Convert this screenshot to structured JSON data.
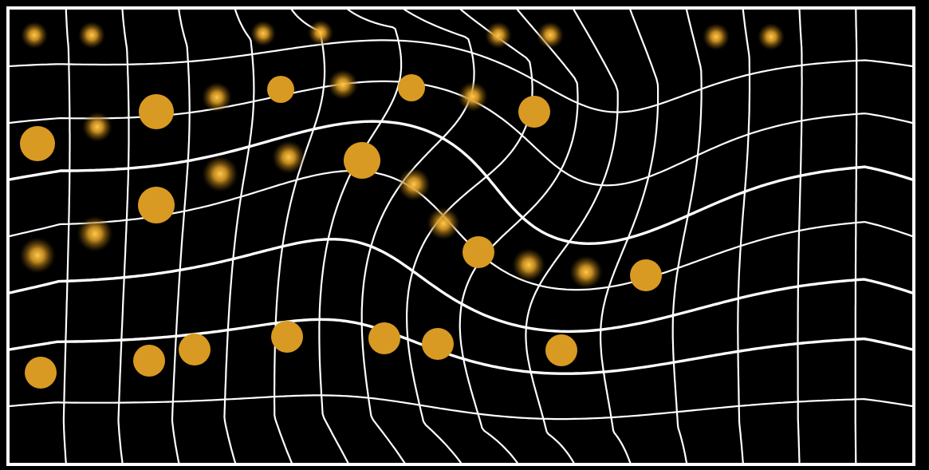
{
  "figure": {
    "background_color": "#000000",
    "frame_color": "#ffffff",
    "grid_color": "#ffffff",
    "sharp_dot_color": "#d89a22",
    "blurred_dot_color": "#d89a22"
  }
}
